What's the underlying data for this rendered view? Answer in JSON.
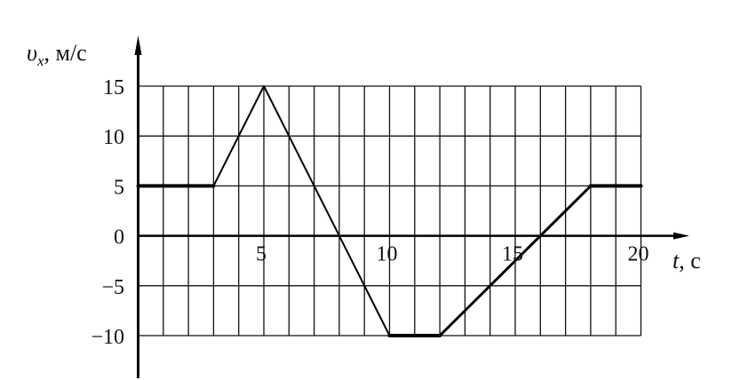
{
  "chart_data": {
    "type": "line",
    "title": "",
    "ylabel_symbol": "υ",
    "ylabel_subscript": "x",
    "ylabel_unit": ", м/с",
    "xlabel_symbol": "t",
    "xlabel_unit": ", с",
    "xlim": [
      0,
      20
    ],
    "ylim": [
      -10,
      15
    ],
    "grid": true,
    "x_grid_step": 1,
    "y_grid_step": 5,
    "x_ticks": [
      5,
      10,
      15,
      20
    ],
    "x_tick_labels": [
      "5",
      "10",
      "15",
      "20"
    ],
    "y_ticks": [
      15,
      10,
      5,
      0,
      -5,
      -10
    ],
    "y_tick_labels": [
      "15",
      "10",
      "5",
      "0",
      "−5",
      "−10"
    ],
    "series": [
      {
        "x": [
          0,
          3,
          5,
          10,
          12,
          18,
          20
        ],
        "y": [
          5,
          5,
          15,
          -10,
          -10,
          5,
          5
        ]
      }
    ],
    "line_color": "#000000"
  }
}
